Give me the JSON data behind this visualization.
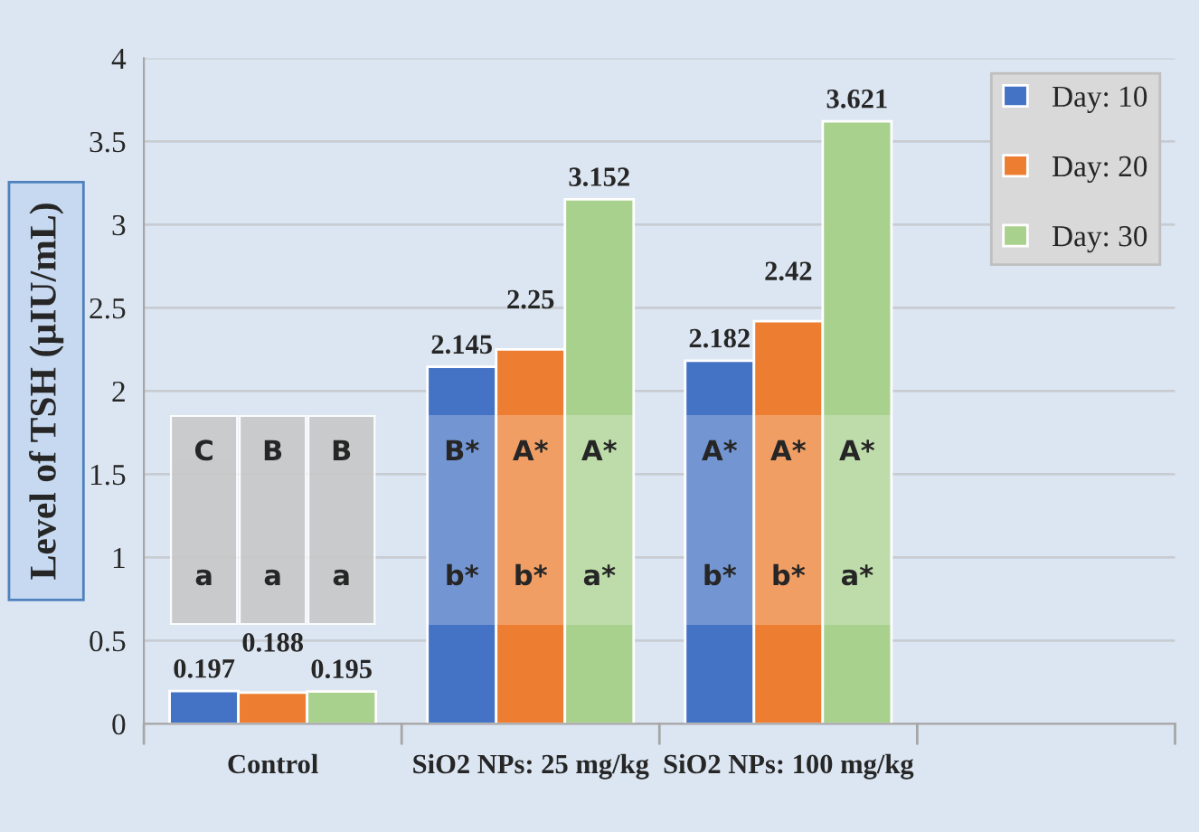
{
  "chart_data": {
    "type": "bar",
    "ylabel": "Level of TSH (µIU/mL)",
    "categories": [
      "Control",
      "SiO2 NPs: 25 mg/kg",
      "SiO2 NPs: 100 mg/kg",
      null
    ],
    "series": [
      {
        "name": "Day: 10",
        "color": "#4472c4",
        "values": [
          0.197,
          2.145,
          2.182,
          null
        ]
      },
      {
        "name": "Day: 20",
        "color": "#ed7d31",
        "values": [
          0.188,
          2.25,
          2.42,
          null
        ]
      },
      {
        "name": "Day: 30",
        "color": "#a9d18e",
        "values": [
          0.195,
          3.152,
          3.621,
          null
        ]
      }
    ],
    "ylim": [
      0,
      4
    ],
    "yticks": [
      0,
      0.5,
      1,
      1.5,
      2,
      2.5,
      3,
      3.5,
      4
    ],
    "grid": "y",
    "legend": "top right",
    "data_labels": true,
    "annotations": [
      "C",
      "a",
      "B",
      "a",
      "B",
      "a",
      "B*",
      "b*",
      "A*",
      "b*",
      "A*",
      "a*",
      "A*",
      "b*",
      "A*",
      "b*",
      "A*",
      "a*"
    ]
  }
}
